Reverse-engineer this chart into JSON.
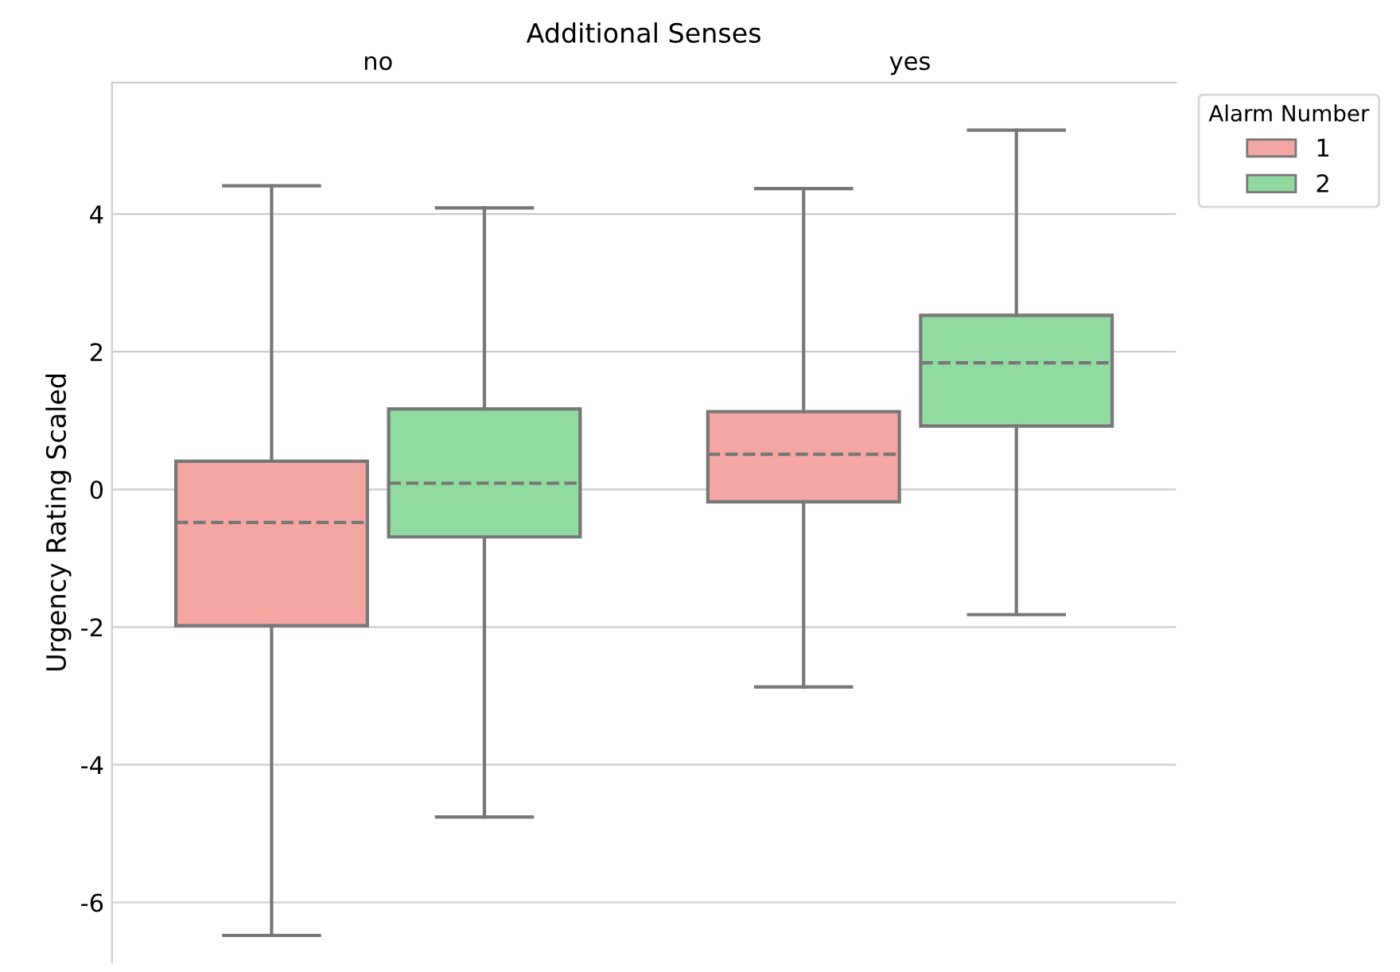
{
  "chart_data": {
    "type": "box",
    "xlabel": "Additional Senses",
    "ylabel": "Urgency Rating Scaled",
    "legend_title": "Alarm Number",
    "categories": [
      "no",
      "yes"
    ],
    "series": [
      {
        "name": "1",
        "color": "#f4a6a3",
        "boxes": [
          {
            "low": -6.48,
            "q1": -1.98,
            "median": -0.48,
            "q3": 0.41,
            "high": 4.41
          },
          {
            "low": -2.87,
            "q1": -0.18,
            "median": 0.51,
            "q3": 1.13,
            "high": 4.37
          }
        ]
      },
      {
        "name": "2",
        "color": "#92dba0",
        "boxes": [
          {
            "low": -4.76,
            "q1": -0.69,
            "median": 0.09,
            "q3": 1.17,
            "high": 4.09
          },
          {
            "low": -1.82,
            "q1": 0.92,
            "median": 1.84,
            "q3": 2.53,
            "high": 5.22
          }
        ]
      }
    ],
    "ylim": [
      -6.87,
      5.91
    ],
    "yticks": [
      -6,
      -4,
      -2,
      0,
      2,
      4
    ],
    "grid": "y",
    "legend": "top right"
  }
}
